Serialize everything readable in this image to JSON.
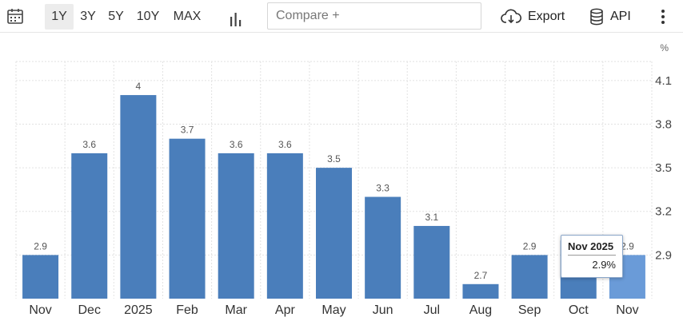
{
  "toolbar": {
    "calendar_icon": "calendar-icon",
    "ranges": [
      {
        "label": "1Y",
        "active": true
      },
      {
        "label": "3Y",
        "active": false
      },
      {
        "label": "5Y",
        "active": false
      },
      {
        "label": "10Y",
        "active": false
      },
      {
        "label": "MAX",
        "active": false
      }
    ],
    "chart_type_icon": "bar-chart-icon",
    "compare_placeholder": "Compare +",
    "export_label": "Export",
    "api_label": "API",
    "more_icon": "more-vertical-icon"
  },
  "tooltip": {
    "title": "Nov 2025",
    "value": "2.9%"
  },
  "colors": {
    "bar": "#4a7ebb",
    "bar_highlight": "#6a9bd8",
    "grid": "#e2e2e2"
  },
  "chart_data": {
    "type": "bar",
    "unit": "%",
    "categories": [
      "Nov",
      "Dec",
      "2025",
      "Feb",
      "Mar",
      "Apr",
      "May",
      "Jun",
      "Jul",
      "Aug",
      "Sep",
      "Oct",
      "Nov"
    ],
    "values": [
      2.9,
      3.6,
      4,
      3.7,
      3.6,
      3.6,
      3.5,
      3.3,
      3.1,
      2.7,
      2.9,
      3,
      2.9
    ],
    "data_labels": [
      "2.9",
      "3.6",
      "4",
      "3.7",
      "3.6",
      "3.6",
      "3.5",
      "3.3",
      "3.1",
      "2.7",
      "2.9",
      "",
      "2.9"
    ],
    "y_ticks": [
      "4.1",
      "3.8",
      "3.5",
      "3.2",
      "2.9"
    ],
    "y_tick_values": [
      4.1,
      3.8,
      3.5,
      3.2,
      2.9
    ],
    "ylim": [
      2.6,
      4.22
    ],
    "y_axis_position": "right",
    "grid": true,
    "highlighted_index": 12
  }
}
